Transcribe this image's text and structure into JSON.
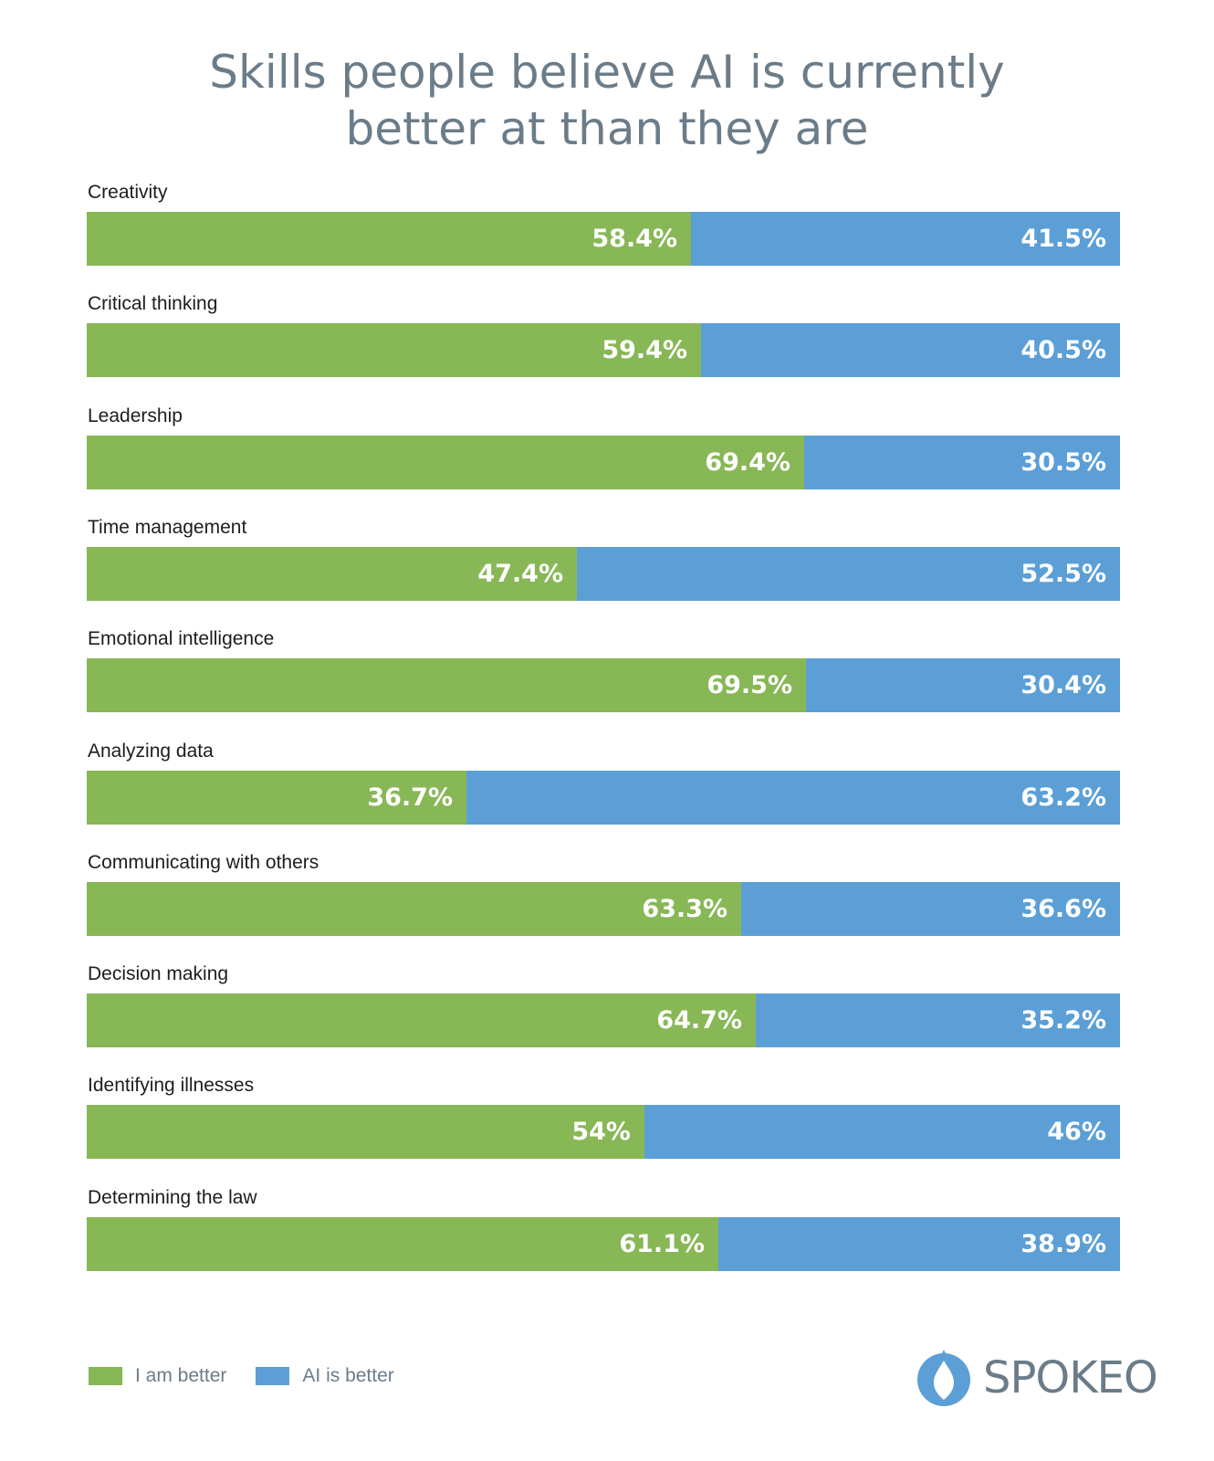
{
  "title": {
    "line1": "Skills people believe AI is currently",
    "line2": "better at than they are"
  },
  "colors": {
    "i_am_better": "#88b756",
    "ai_is_better": "#5b9fd6"
  },
  "legend": {
    "i_am_better": "I am better",
    "ai_is_better": "AI is better"
  },
  "logo": {
    "icon": "spokeo-drop-icon",
    "text": "SPOKEO"
  },
  "chart_data": {
    "type": "bar",
    "orientation": "horizontal-stacked-100",
    "title": "Skills people believe AI is currently better at than they are",
    "xlabel": "",
    "ylabel": "",
    "xlim": [
      0,
      100
    ],
    "legend_position": "bottom-left",
    "categories": [
      "Creativity",
      "Critical thinking",
      "Leadership",
      "Time management",
      "Emotional intelligence",
      "Analyzing data",
      "Communicating with others",
      "Decision making",
      "Identifying illnesses",
      "Determining the law"
    ],
    "series": [
      {
        "name": "I am better",
        "values": [
          58.4,
          59.4,
          69.4,
          47.4,
          69.5,
          36.7,
          63.3,
          64.7,
          54,
          61.1
        ],
        "labels": [
          "58.4%",
          "59.4%",
          "69.4%",
          "47.4%",
          "69.5%",
          "36.7%",
          "63.3%",
          "64.7%",
          "54%",
          "61.1%"
        ]
      },
      {
        "name": "AI is better",
        "values": [
          41.5,
          40.5,
          30.5,
          52.5,
          30.4,
          63.2,
          36.6,
          35.2,
          46,
          38.9
        ],
        "labels": [
          "41.5%",
          "40.5%",
          "30.5%",
          "52.5%",
          "30.4%",
          "63.2%",
          "36.6%",
          "35.2%",
          "46%",
          "38.9%"
        ]
      }
    ]
  }
}
